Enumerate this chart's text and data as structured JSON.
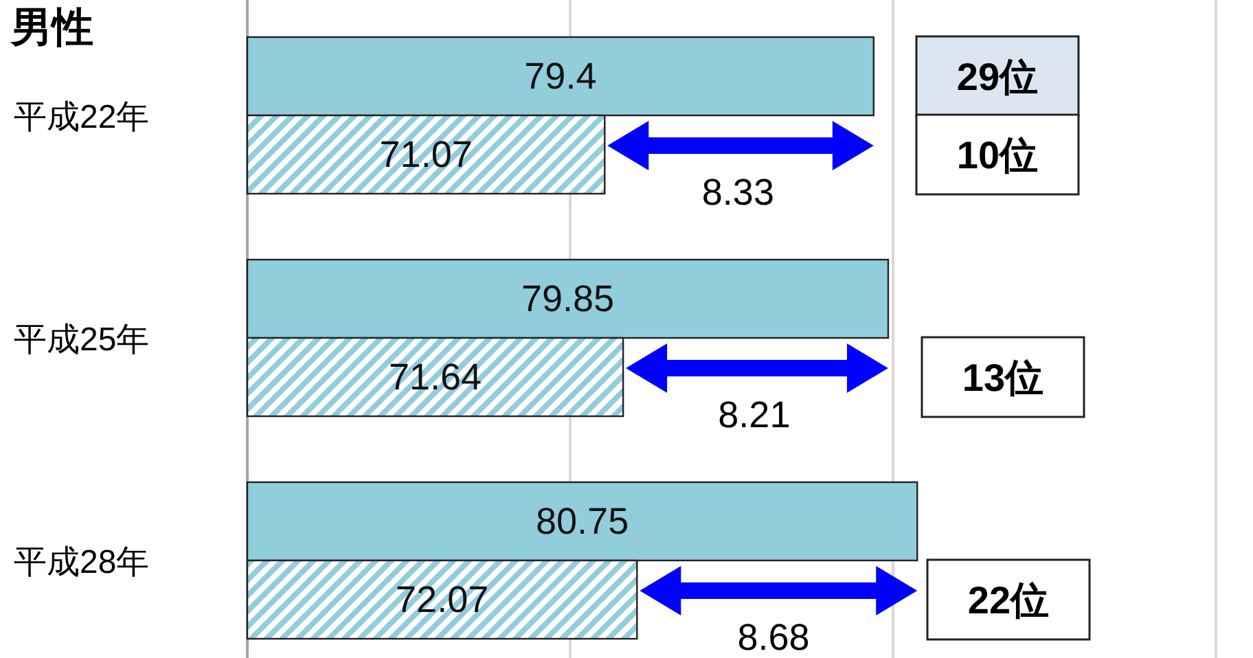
{
  "chart_data": {
    "type": "bar",
    "orientation": "horizontal",
    "title": "男性",
    "categories": [
      "平成22年",
      "平成25年",
      "平成28年"
    ],
    "series": [
      {
        "color": "#92cddc",
        "values": [
          79.4,
          79.85,
          80.75
        ]
      },
      {
        "color": "#92cddc",
        "values": [
          71.07,
          71.64,
          72.07
        ]
      }
    ],
    "xlim": [
      60,
      90
    ],
    "xticks": [
      {
        "value": 60,
        "label": null
      },
      {
        "value": 70,
        "label": null
      },
      {
        "value": 80,
        "label": null
      },
      {
        "value": 90,
        "label": null
      }
    ],
    "grid": "x",
    "tick_labels": "y",
    "data_labels": true,
    "annotations": [
      {
        "text": "8.33",
        "x": 75.2,
        "y": "平成22年"
      },
      "29位",
      "10位",
      {
        "text": "8.21",
        "x": 75.7,
        "y": "平成25年"
      },
      "13位",
      {
        "text": "8.68",
        "x": 76.3,
        "y": "平成28年"
      },
      "22位"
    ]
  }
}
